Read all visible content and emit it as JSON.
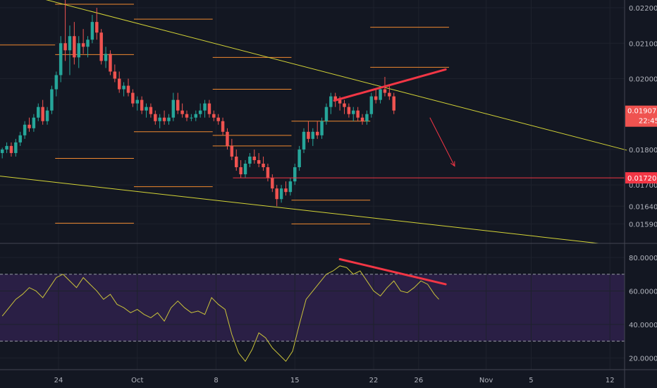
{
  "chart_data": {
    "type": "candlestick",
    "title": "",
    "colors": {
      "background": "#131722",
      "up": "#26a69a",
      "down": "#ef5350",
      "trendline": "#d4d436",
      "level": "#f0892f",
      "annotation": "#f23645",
      "rsi_line": "#c9c23a",
      "rsi_band": "#2a1f45",
      "axis_text": "#b2b5be"
    },
    "x_axis": {
      "ticks": [
        {
          "label": "24",
          "day": 24
        },
        {
          "label": "Oct",
          "day": 31
        },
        {
          "label": "8",
          "day": 38
        },
        {
          "label": "15",
          "day": 45
        },
        {
          "label": "22",
          "day": 52
        },
        {
          "label": "26",
          "day": 56
        },
        {
          "label": "Nov",
          "day": 62
        },
        {
          "label": "5",
          "day": 66
        },
        {
          "label": "12",
          "day": 73
        }
      ],
      "range": [
        18.8,
        74.3
      ]
    },
    "price_panel": {
      "y_ticks": [
        "0.022000",
        "0.021000",
        "0.020000",
        "0.018000",
        "0.017000",
        "0.016400",
        "0.015900"
      ],
      "y_tick_values": [
        0.022,
        0.021,
        0.02,
        0.018,
        0.017,
        0.0164,
        0.0159
      ],
      "range": [
        0.01535,
        0.02222
      ],
      "current_price": {
        "label": "0.019079",
        "value": 0.01908
      },
      "countdown": "22:45",
      "support_level": {
        "label": "0.017201",
        "value": 0.0172
      },
      "trendlines": [
        {
          "from": [
            20.8,
            0.0224
          ],
          "to": [
            74.5,
            0.01798
          ]
        },
        {
          "from": [
            18.8,
            0.01725
          ],
          "to": [
            72.0,
            0.01535
          ]
        }
      ],
      "fib_levels": [
        {
          "day_start": 23.7,
          "day_end": 30.7,
          "value": 0.0221
        },
        {
          "day_start": 30.7,
          "day_end": 37.7,
          "value": 0.02168
        },
        {
          "day_start": 18.8,
          "day_end": 23.7,
          "value": 0.02095
        },
        {
          "day_start": 23.7,
          "day_end": 30.7,
          "value": 0.02068
        },
        {
          "day_start": 37.7,
          "day_end": 44.7,
          "value": 0.0206
        },
        {
          "day_start": 37.7,
          "day_end": 44.7,
          "value": 0.0197
        },
        {
          "day_start": 30.7,
          "day_end": 37.7,
          "value": 0.0185
        },
        {
          "day_start": 37.7,
          "day_end": 44.7,
          "value": 0.0181
        },
        {
          "day_start": 37.7,
          "day_end": 44.7,
          "value": 0.0184
        },
        {
          "day_start": 23.7,
          "day_end": 30.7,
          "value": 0.01775
        },
        {
          "day_start": 30.7,
          "day_end": 37.7,
          "value": 0.01695
        },
        {
          "day_start": 44.7,
          "day_end": 51.7,
          "value": 0.01657
        },
        {
          "day_start": 23.7,
          "day_end": 30.7,
          "value": 0.01592
        },
        {
          "day_start": 44.7,
          "day_end": 51.7,
          "value": 0.0159
        },
        {
          "day_start": 44.7,
          "day_end": 51.7,
          "value": 0.0188
        },
        {
          "day_start": 51.7,
          "day_end": 58.7,
          "value": 0.02032
        },
        {
          "day_start": 51.7,
          "day_end": 58.7,
          "value": 0.02145
        }
      ],
      "divergence_line": {
        "from": [
          48.5,
          0.01938
        ],
        "to": [
          58.4,
          0.02026
        ]
      },
      "projection_arrow": {
        "from": [
          57.0,
          0.0189
        ],
        "to": [
          59.2,
          0.01753
        ]
      },
      "candles": [
        [
          19.0,
          0.0179,
          0.01805,
          0.01775,
          0.018
        ],
        [
          19.4,
          0.018,
          0.0182,
          0.0179,
          0.0181
        ],
        [
          19.8,
          0.0181,
          0.0182,
          0.0178,
          0.0179
        ],
        [
          20.2,
          0.0179,
          0.0183,
          0.0178,
          0.0182
        ],
        [
          20.6,
          0.0182,
          0.0185,
          0.0181,
          0.0184
        ],
        [
          21.0,
          0.0184,
          0.0188,
          0.0183,
          0.0187
        ],
        [
          21.4,
          0.0187,
          0.0189,
          0.0185,
          0.0186
        ],
        [
          21.8,
          0.0186,
          0.019,
          0.0185,
          0.0189
        ],
        [
          22.2,
          0.0189,
          0.0193,
          0.0188,
          0.0192
        ],
        [
          22.6,
          0.0192,
          0.0194,
          0.0187,
          0.0188
        ],
        [
          23.0,
          0.0188,
          0.0192,
          0.0187,
          0.0191
        ],
        [
          23.4,
          0.0191,
          0.0198,
          0.019,
          0.0197
        ],
        [
          23.8,
          0.0197,
          0.0202,
          0.0195,
          0.0201
        ],
        [
          24.2,
          0.0201,
          0.0212,
          0.0199,
          0.021
        ],
        [
          24.6,
          0.021,
          0.0226,
          0.0205,
          0.0208
        ],
        [
          25.0,
          0.0208,
          0.0215,
          0.0201,
          0.0212
        ],
        [
          25.4,
          0.0212,
          0.0216,
          0.0204,
          0.0206
        ],
        [
          25.8,
          0.0206,
          0.0212,
          0.0203,
          0.021
        ],
        [
          26.2,
          0.021,
          0.0214,
          0.0207,
          0.0209
        ],
        [
          26.6,
          0.0209,
          0.0212,
          0.0206,
          0.0211
        ],
        [
          27.0,
          0.0211,
          0.0218,
          0.021,
          0.0216
        ],
        [
          27.4,
          0.0216,
          0.022,
          0.0211,
          0.0213
        ],
        [
          27.8,
          0.0213,
          0.0214,
          0.0204,
          0.0205
        ],
        [
          28.2,
          0.0205,
          0.0209,
          0.0203,
          0.0207
        ],
        [
          28.6,
          0.0207,
          0.0208,
          0.0201,
          0.0202
        ],
        [
          29.0,
          0.0202,
          0.0204,
          0.0199,
          0.02
        ],
        [
          29.4,
          0.02,
          0.0202,
          0.0196,
          0.0197
        ],
        [
          29.8,
          0.0197,
          0.0199,
          0.0195,
          0.0198
        ],
        [
          30.2,
          0.0198,
          0.02,
          0.0195,
          0.0196
        ],
        [
          30.6,
          0.0196,
          0.0197,
          0.0192,
          0.0193
        ],
        [
          31.0,
          0.0193,
          0.0195,
          0.0191,
          0.0194
        ],
        [
          31.4,
          0.0194,
          0.0195,
          0.019,
          0.0191
        ],
        [
          31.8,
          0.0191,
          0.0193,
          0.0189,
          0.0192
        ],
        [
          32.2,
          0.0192,
          0.0193,
          0.0189,
          0.019
        ],
        [
          32.6,
          0.019,
          0.0191,
          0.0187,
          0.0188
        ],
        [
          33.0,
          0.0188,
          0.019,
          0.0186,
          0.0189
        ],
        [
          33.4,
          0.0189,
          0.0191,
          0.0187,
          0.0188
        ],
        [
          33.8,
          0.0188,
          0.019,
          0.0187,
          0.0189
        ],
        [
          34.2,
          0.0189,
          0.0196,
          0.0188,
          0.0194
        ],
        [
          34.6,
          0.0194,
          0.0196,
          0.019,
          0.0191
        ],
        [
          35.0,
          0.0191,
          0.0193,
          0.0189,
          0.019
        ],
        [
          35.4,
          0.019,
          0.0191,
          0.0188,
          0.0189
        ],
        [
          35.8,
          0.0189,
          0.019,
          0.0188,
          0.0189
        ],
        [
          36.2,
          0.0189,
          0.0191,
          0.0188,
          0.019
        ],
        [
          36.6,
          0.019,
          0.0193,
          0.0189,
          0.0191
        ],
        [
          37.0,
          0.0191,
          0.0194,
          0.0189,
          0.0193
        ],
        [
          37.4,
          0.0193,
          0.0194,
          0.0189,
          0.019
        ],
        [
          37.8,
          0.019,
          0.0191,
          0.0188,
          0.0189
        ],
        [
          38.2,
          0.0189,
          0.019,
          0.0187,
          0.0188
        ],
        [
          38.6,
          0.0188,
          0.0189,
          0.0184,
          0.0185
        ],
        [
          39.0,
          0.0185,
          0.0186,
          0.018,
          0.0181
        ],
        [
          39.4,
          0.0181,
          0.0183,
          0.0177,
          0.0178
        ],
        [
          39.8,
          0.0178,
          0.018,
          0.0174,
          0.0175
        ],
        [
          40.2,
          0.0175,
          0.0177,
          0.0172,
          0.0173
        ],
        [
          40.6,
          0.0173,
          0.0177,
          0.0172,
          0.0176
        ],
        [
          41.0,
          0.0176,
          0.0179,
          0.0175,
          0.0178
        ],
        [
          41.4,
          0.0178,
          0.018,
          0.0176,
          0.0177
        ],
        [
          41.8,
          0.0177,
          0.0179,
          0.0175,
          0.0176
        ],
        [
          42.2,
          0.0176,
          0.0178,
          0.0174,
          0.0175
        ],
        [
          42.6,
          0.0175,
          0.0176,
          0.0171,
          0.0172
        ],
        [
          43.0,
          0.0172,
          0.0173,
          0.0168,
          0.0169
        ],
        [
          43.4,
          0.0169,
          0.017,
          0.0164,
          0.0166
        ],
        [
          43.8,
          0.0166,
          0.017,
          0.0165,
          0.0169
        ],
        [
          44.2,
          0.0169,
          0.0171,
          0.0167,
          0.0168
        ],
        [
          44.6,
          0.0168,
          0.0172,
          0.0167,
          0.0171
        ],
        [
          45.0,
          0.0171,
          0.0176,
          0.017,
          0.0175
        ],
        [
          45.4,
          0.0175,
          0.0181,
          0.0174,
          0.018
        ],
        [
          45.8,
          0.018,
          0.0186,
          0.0179,
          0.0185
        ],
        [
          46.2,
          0.0185,
          0.0188,
          0.0182,
          0.0183
        ],
        [
          46.6,
          0.0183,
          0.0186,
          0.0181,
          0.0185
        ],
        [
          47.0,
          0.0185,
          0.0188,
          0.0183,
          0.0184
        ],
        [
          47.4,
          0.0184,
          0.0189,
          0.0183,
          0.0188
        ],
        [
          47.8,
          0.0188,
          0.0193,
          0.0187,
          0.0192
        ],
        [
          48.2,
          0.0192,
          0.0196,
          0.019,
          0.0195
        ],
        [
          48.6,
          0.0195,
          0.0196,
          0.0192,
          0.0194
        ],
        [
          49.0,
          0.0194,
          0.0195,
          0.0191,
          0.0193
        ],
        [
          49.4,
          0.0193,
          0.0194,
          0.019,
          0.0192
        ],
        [
          49.8,
          0.0192,
          0.0193,
          0.0189,
          0.019
        ],
        [
          50.2,
          0.019,
          0.0192,
          0.0188,
          0.0191
        ],
        [
          50.6,
          0.0191,
          0.0192,
          0.0188,
          0.0189
        ],
        [
          51.0,
          0.0189,
          0.019,
          0.0187,
          0.0188
        ],
        [
          51.4,
          0.0188,
          0.0191,
          0.0187,
          0.019
        ],
        [
          51.8,
          0.019,
          0.0196,
          0.0189,
          0.0195
        ],
        [
          52.2,
          0.0195,
          0.0197,
          0.0193,
          0.0194
        ],
        [
          52.6,
          0.0194,
          0.0198,
          0.0193,
          0.0197
        ],
        [
          53.0,
          0.0197,
          0.02005,
          0.0195,
          0.0196
        ],
        [
          53.4,
          0.0196,
          0.0198,
          0.0194,
          0.0195
        ],
        [
          53.8,
          0.0195,
          0.0196,
          0.019,
          0.0191
        ]
      ]
    },
    "rsi_panel": {
      "y_ticks": [
        "80.0000",
        "60.0000",
        "40.0000",
        "20.0000"
      ],
      "y_tick_values": [
        80,
        60,
        40,
        20
      ],
      "range": [
        13,
        88
      ],
      "overbought": 70,
      "oversold": 30,
      "divergence_line": {
        "from": [
          49.0,
          79
        ],
        "to": [
          58.4,
          64
        ]
      },
      "values": [
        [
          19.0,
          45
        ],
        [
          19.6,
          50
        ],
        [
          20.2,
          55
        ],
        [
          20.8,
          58
        ],
        [
          21.4,
          62
        ],
        [
          22.0,
          60
        ],
        [
          22.6,
          56
        ],
        [
          23.2,
          62
        ],
        [
          23.8,
          68
        ],
        [
          24.4,
          70
        ],
        [
          25.0,
          66
        ],
        [
          25.6,
          62
        ],
        [
          26.2,
          68
        ],
        [
          26.8,
          64
        ],
        [
          27.4,
          60
        ],
        [
          28.0,
          55
        ],
        [
          28.6,
          58
        ],
        [
          29.2,
          52
        ],
        [
          29.8,
          50
        ],
        [
          30.4,
          47
        ],
        [
          31.0,
          49
        ],
        [
          31.6,
          46
        ],
        [
          32.2,
          44
        ],
        [
          32.8,
          47
        ],
        [
          33.4,
          42
        ],
        [
          34.0,
          50
        ],
        [
          34.6,
          54
        ],
        [
          35.2,
          50
        ],
        [
          35.8,
          47
        ],
        [
          36.4,
          48
        ],
        [
          37.0,
          46
        ],
        [
          37.6,
          56
        ],
        [
          38.2,
          52
        ],
        [
          38.8,
          49
        ],
        [
          39.4,
          34
        ],
        [
          40.0,
          23
        ],
        [
          40.6,
          18
        ],
        [
          41.2,
          25
        ],
        [
          41.8,
          35
        ],
        [
          42.4,
          32
        ],
        [
          43.0,
          26
        ],
        [
          43.6,
          22
        ],
        [
          44.2,
          18
        ],
        [
          44.8,
          24
        ],
        [
          45.4,
          40
        ],
        [
          46.0,
          55
        ],
        [
          46.6,
          60
        ],
        [
          47.2,
          65
        ],
        [
          47.8,
          70
        ],
        [
          48.4,
          72
        ],
        [
          49.0,
          75
        ],
        [
          49.6,
          74
        ],
        [
          50.2,
          70
        ],
        [
          50.8,
          72
        ],
        [
          51.4,
          66
        ],
        [
          52.0,
          60
        ],
        [
          52.6,
          57
        ],
        [
          53.2,
          62
        ],
        [
          53.8,
          66
        ],
        [
          54.4,
          60
        ],
        [
          55.0,
          59
        ],
        [
          55.6,
          62
        ],
        [
          56.2,
          66
        ],
        [
          56.8,
          64
        ],
        [
          57.4,
          58
        ],
        [
          57.8,
          55
        ]
      ]
    }
  }
}
